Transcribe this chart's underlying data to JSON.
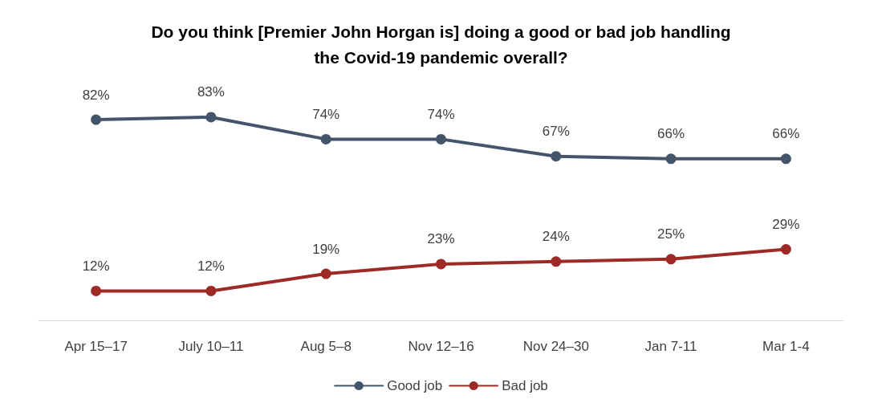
{
  "chart_data": {
    "type": "line",
    "title": "Do you think [Premier John Horgan is] doing a good or bad job handling\nthe Covid-19 pandemic overall?",
    "categories": [
      "Apr 15–17",
      "July 10–11",
      "Aug 5–8",
      "Nov 12–16",
      "Nov 24–30",
      "Jan 7-11",
      "Mar 1-4"
    ],
    "series": [
      {
        "name": "Good job",
        "color": "#44546a",
        "values": [
          82,
          83,
          74,
          74,
          67,
          66,
          66
        ],
        "value_labels": [
          "82%",
          "83%",
          "74%",
          "74%",
          "67%",
          "66%",
          "66%"
        ]
      },
      {
        "name": "Bad job",
        "color": "#9e2a25",
        "values": [
          12,
          12,
          19,
          23,
          24,
          25,
          29
        ],
        "value_labels": [
          "12%",
          "12%",
          "19%",
          "23%",
          "24%",
          "25%",
          "29%"
        ]
      }
    ],
    "tick_labels": "x",
    "grid": false,
    "legend": "bottom",
    "marker": "circle",
    "line_style": "solid"
  }
}
